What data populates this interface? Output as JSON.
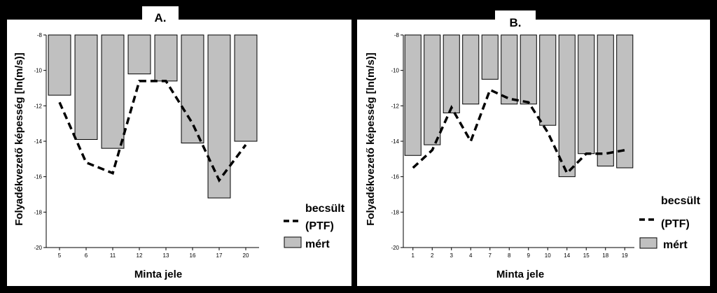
{
  "chart_data": [
    {
      "type": "bar",
      "panel": "A.",
      "title": "A.",
      "xlabel": "Minta jele",
      "ylabel": "Folyadékvezető képesség [ln(m/s)]",
      "ylim": [
        -20,
        -8
      ],
      "yticks": [
        -8,
        -10,
        -12,
        -14,
        -16,
        -18,
        -20
      ],
      "categories": [
        "5",
        "6",
        "11",
        "12",
        "13",
        "16",
        "17",
        "20"
      ],
      "series": [
        {
          "name": "mért",
          "kind": "bar",
          "values": [
            -11.4,
            -13.9,
            -14.4,
            -10.2,
            -10.6,
            -14.1,
            -17.2,
            -14.0
          ]
        },
        {
          "name": "becsült (PTF)",
          "kind": "dashed-line",
          "values": [
            -11.8,
            -15.2,
            -15.8,
            -10.6,
            -10.6,
            -13.0,
            -16.2,
            -14.2
          ]
        }
      ],
      "legend": [
        {
          "label_lines": [
            "becsült",
            "(PTF)"
          ],
          "kind": "dashed-line"
        },
        {
          "label_lines": [
            "mért"
          ],
          "kind": "bar"
        }
      ],
      "grid": false,
      "legend_position": "right"
    },
    {
      "type": "bar",
      "panel": "B.",
      "title": "B.",
      "xlabel": "Minta jele",
      "ylabel": "Folyadékvezető képesség [ln(m/s)]",
      "ylim": [
        -20,
        -8
      ],
      "yticks": [
        -8,
        -10,
        -12,
        -14,
        -16,
        -18,
        -20
      ],
      "categories": [
        "1",
        "2",
        "3",
        "4",
        "7",
        "8",
        "9",
        "10",
        "14",
        "15",
        "18",
        "19"
      ],
      "series": [
        {
          "name": "mért",
          "kind": "bar",
          "values": [
            -14.8,
            -14.2,
            -12.4,
            -11.9,
            -10.5,
            -11.9,
            -11.9,
            -13.1,
            -16.0,
            -14.7,
            -15.4,
            -15.5
          ]
        },
        {
          "name": "becsült (PTF)",
          "kind": "dashed-line",
          "values": [
            -15.5,
            -14.5,
            -12.1,
            -14.0,
            -11.1,
            -11.6,
            -11.8,
            -13.5,
            -15.8,
            -14.7,
            -14.7,
            -14.5
          ]
        }
      ],
      "legend": [
        {
          "label_lines": [
            "becsült",
            "(PTF)"
          ],
          "kind": "dashed-line"
        },
        {
          "label_lines": [
            "mért"
          ],
          "kind": "bar"
        }
      ],
      "grid": false,
      "legend_position": "right"
    }
  ]
}
